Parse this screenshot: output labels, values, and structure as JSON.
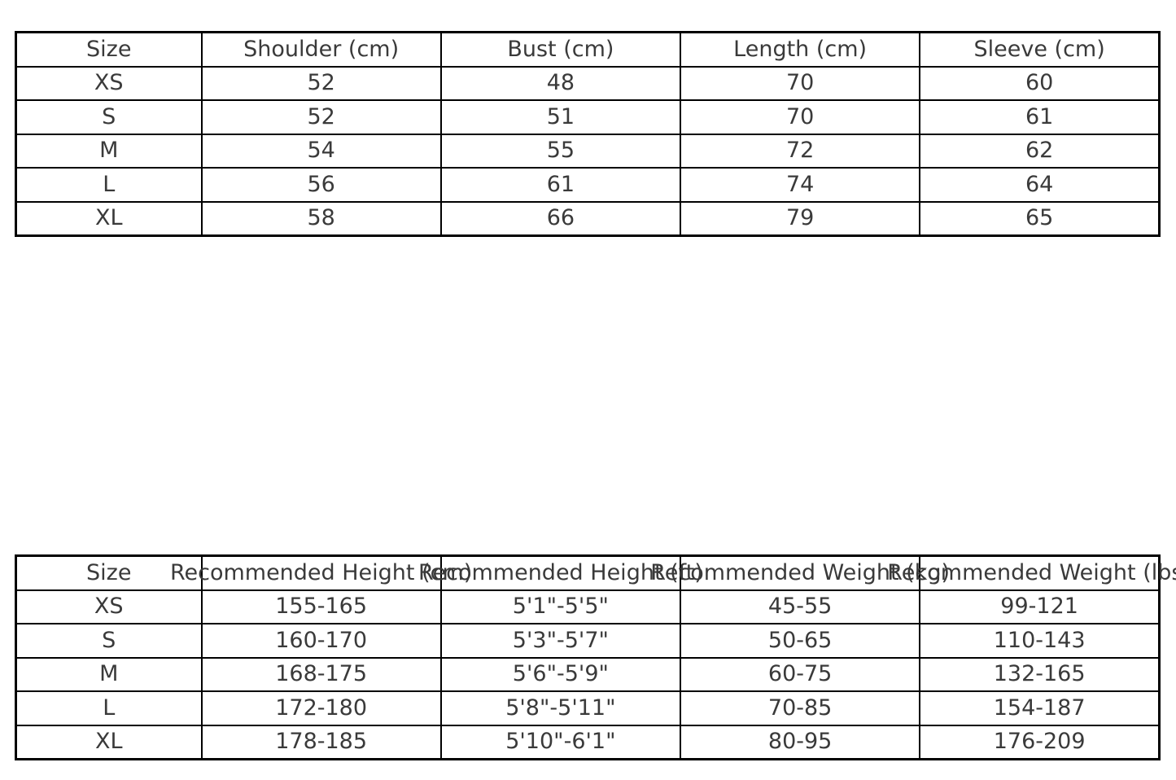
{
  "chart_data": [
    {
      "type": "table",
      "name": "garment_size_chart",
      "columns": [
        "Size",
        "Shoulder (cm)",
        "Bust (cm)",
        "Length (cm)",
        "Sleeve (cm)"
      ],
      "rows": [
        [
          "XS",
          "52",
          "48",
          "70",
          "60"
        ],
        [
          "S",
          "52",
          "51",
          "70",
          "61"
        ],
        [
          "M",
          "54",
          "55",
          "72",
          "62"
        ],
        [
          "L",
          "56",
          "61",
          "74",
          "64"
        ],
        [
          "XL",
          "58",
          "66",
          "79",
          "65"
        ]
      ]
    },
    {
      "type": "table",
      "name": "fit_recommendation_chart",
      "columns": [
        "Size",
        "Recommended Height (cm)",
        "Recommended Height (ft)",
        "Recommended Weight (kg)",
        "Recommended Weight (lbs)"
      ],
      "rows": [
        [
          "XS",
          "155-165",
          "5'1\"-5'5\"",
          "45-55",
          "99-121"
        ],
        [
          "S",
          "160-170",
          "5'3\"-5'7\"",
          "50-65",
          "110-143"
        ],
        [
          "M",
          "168-175",
          "5'6\"-5'9\"",
          "60-75",
          "132-165"
        ],
        [
          "L",
          "172-180",
          "5'8\"-5'11\"",
          "70-85",
          "154-187"
        ],
        [
          "XL",
          "178-185",
          "5'10\"-6'1\"",
          "80-95",
          "176-209"
        ]
      ]
    }
  ],
  "colors": {
    "text": "#3a3a3a",
    "border": "#000000",
    "background": "#ffffff"
  }
}
